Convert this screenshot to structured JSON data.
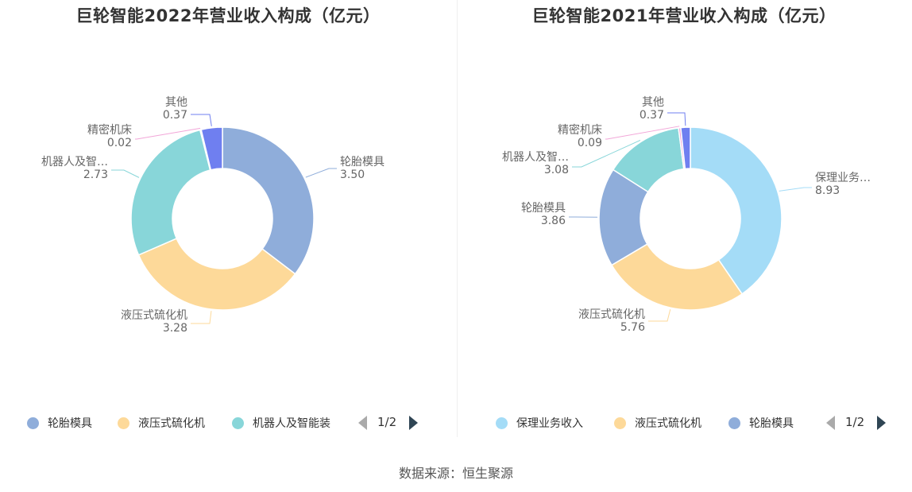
{
  "colors": {
    "light_blue": "#a4dcf7",
    "steel_blue": "#8fadda",
    "yellow": "#fdd999",
    "teal": "#88d6d9",
    "pink": "#f2a6d8",
    "purple": "#6f7ff0"
  },
  "source": "数据来源：恒生聚源",
  "chart_data": [
    {
      "type": "pie",
      "variant": "donut",
      "title": "巨轮智能2022年营业收入构成（亿元）",
      "unit": "亿元",
      "slices": [
        {
          "name": "轮胎模具",
          "value": 3.5,
          "display_name": "轮胎模具",
          "color": "#8fadda"
        },
        {
          "name": "液压式硫化机",
          "value": 3.28,
          "display_name": "液压式硫化机",
          "color": "#fdd999"
        },
        {
          "name": "机器人及智能装",
          "value": 2.73,
          "display_name": "机器人及智…",
          "color": "#88d6d9"
        },
        {
          "name": "精密机床",
          "value": 0.02,
          "display_name": "精密机床",
          "color": "#f2a6d8"
        },
        {
          "name": "其他",
          "value": 0.37,
          "display_name": "其他",
          "color": "#6f7ff0"
        }
      ],
      "legend": {
        "items": [
          {
            "label": "轮胎模具",
            "color": "#8fadda"
          },
          {
            "label": "液压式硫化机",
            "color": "#fdd999"
          },
          {
            "label": "机器人及智能装",
            "color": "#88d6d9"
          }
        ],
        "page": "1/2",
        "placement": "bottom"
      }
    },
    {
      "type": "pie",
      "variant": "donut",
      "title": "巨轮智能2021年营业收入构成（亿元）",
      "unit": "亿元",
      "slices": [
        {
          "name": "保理业务收入",
          "value": 8.93,
          "display_name": "保理业务…",
          "color": "#a4dcf7"
        },
        {
          "name": "液压式硫化机",
          "value": 5.76,
          "display_name": "液压式硫化机",
          "color": "#fdd999"
        },
        {
          "name": "轮胎模具",
          "value": 3.86,
          "display_name": "轮胎模具",
          "color": "#8fadda"
        },
        {
          "name": "机器人及智能装",
          "value": 3.08,
          "display_name": "机器人及智…",
          "color": "#88d6d9"
        },
        {
          "name": "精密机床",
          "value": 0.09,
          "display_name": "精密机床",
          "color": "#f2a6d8"
        },
        {
          "name": "其他",
          "value": 0.37,
          "display_name": "其他",
          "color": "#6f7ff0"
        }
      ],
      "legend": {
        "items": [
          {
            "label": "保理业务收入",
            "color": "#a4dcf7"
          },
          {
            "label": "液压式硫化机",
            "color": "#fdd999"
          },
          {
            "label": "轮胎模具",
            "color": "#8fadda"
          }
        ],
        "page": "1/2",
        "placement": "bottom"
      }
    }
  ]
}
